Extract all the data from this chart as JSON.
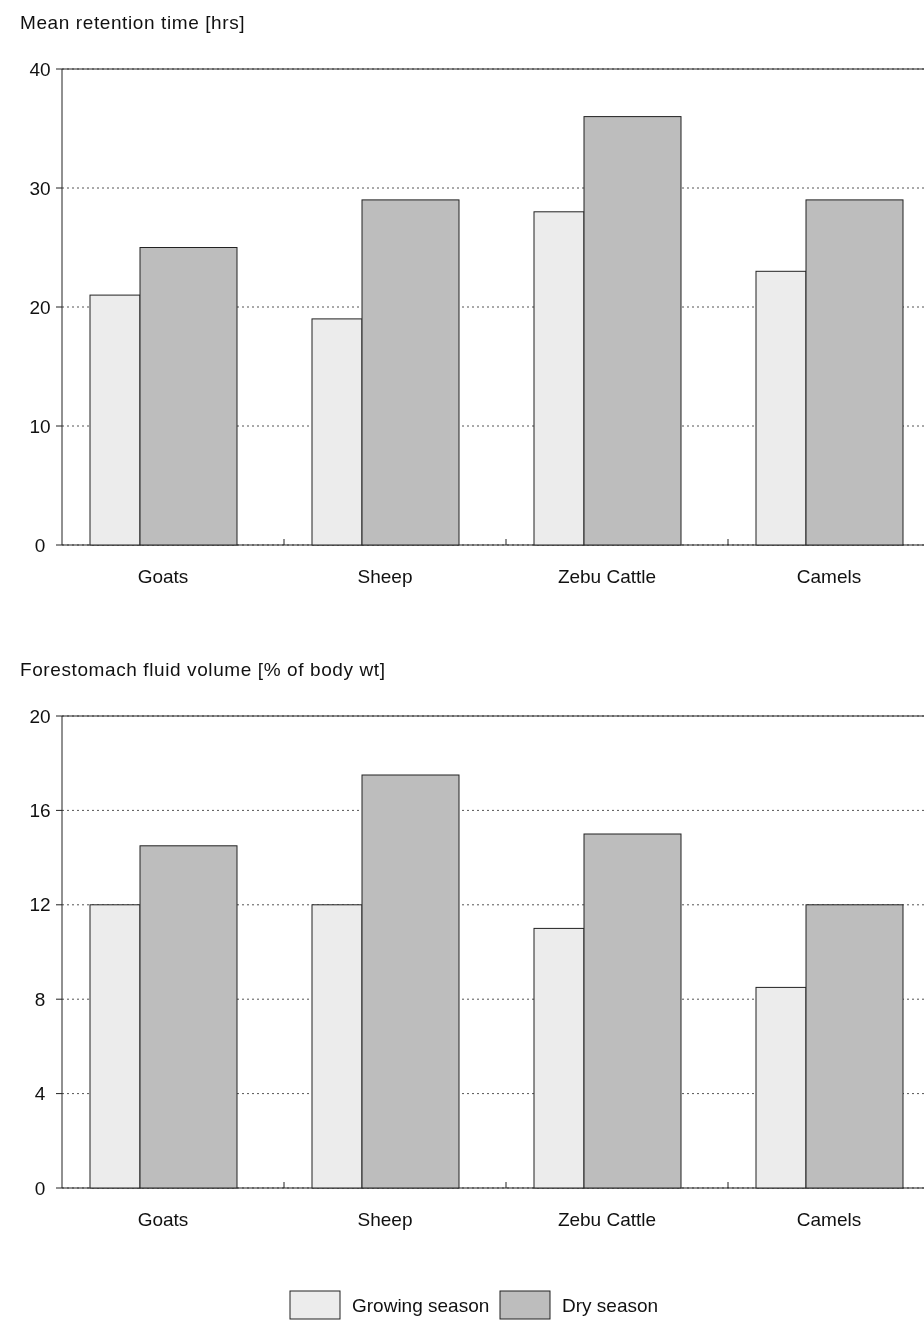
{
  "chart_data": [
    {
      "type": "bar",
      "title": "Mean retention time [hrs]",
      "categories": [
        "Goats",
        "Sheep",
        "Zebu Cattle",
        "Camels"
      ],
      "series": [
        {
          "color": "#ececec",
          "values": [
            21,
            19,
            28,
            23
          ]
        },
        {
          "color": "#bdbdbd",
          "values": [
            25,
            29,
            36,
            29
          ]
        }
      ],
      "ylim": [
        0,
        40
      ],
      "yticks": [
        0,
        10,
        20,
        30,
        40
      ],
      "grid": "y",
      "legend": false
    },
    {
      "type": "bar",
      "title": "Forestomach fluid volume [% of body wt]",
      "categories": [
        "Goats",
        "Sheep",
        "Zebu Cattle",
        "Camels"
      ],
      "series": [
        {
          "name": "Growing season",
          "color": "#ececec",
          "values": [
            12,
            12,
            11,
            8.5
          ]
        },
        {
          "name": "Dry season",
          "color": "#bdbdbd",
          "values": [
            14.5,
            17.5,
            15,
            12
          ]
        }
      ],
      "ylim": [
        0,
        20
      ],
      "yticks": [
        0,
        4,
        8,
        12,
        16,
        20
      ],
      "grid": "y",
      "legend": "bottom"
    }
  ]
}
